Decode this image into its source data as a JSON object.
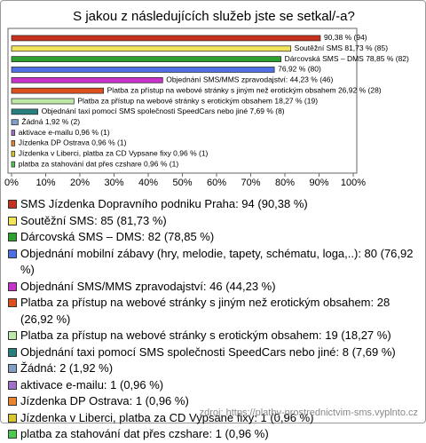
{
  "chart_data": {
    "type": "hbar",
    "title": "S jakou z následujících služeb jste se setkal/-a?",
    "categories": [
      "SMS Jízdenka Dopravního podniku Praha: 94 (90,38 %)",
      "Soutěžní SMS: 85 (81,73 %)",
      "Dárcovská SMS – DMS: 82 (78,85 %)",
      "Objednání mobilní zábavy (hry, melodie, tapety, schématu, loga,..): 80 (76,92 %)",
      "Objednání SMS/MMS zpravodajství: 46 (44,23 %)",
      "Platba za přístup na webové stránky s jiným než erotickým obsahem: 28 (26,92 %)",
      "Platba za přístup na webové stránky s erotickým obsahem: 19 (18,27 %)",
      "Objednání taxi pomocí SMS společnosti SpeedCars nebo jiné: 8 (7,69 %)",
      "Žádná: 2 (1,92 %)",
      "aktivace e-mailu: 1 (0,96 %)",
      "Jízdenka DP Ostrava: 1 (0,96 %)",
      "Jízdenka v Liberci, platba za CD Vypsane fixy: 1 (0,96 %)",
      "platba za stahování dat přes czshare: 1 (0,96 %)"
    ],
    "values": [
      90.38,
      81.73,
      78.85,
      76.92,
      44.23,
      26.92,
      18.27,
      7.69,
      1.92,
      0.96,
      0.96,
      0.96,
      0.96
    ],
    "value_labels": [
      "90,38 % (94)",
      "Soutěžní SMS 81,73 % (85)",
      "Dárcovská SMS – DMS 78,85 % (82)",
      "76,92 % (80)",
      "Objednání SMS/MMS zpravodajství: 44,23 % (46)",
      "Platba za přístup na webové stránky s jiným než erotickým obsahem 26,92 % (28)",
      "Platba za přístup na webové stránky s erotickým obsahem 18,27 % (19)",
      "Objednání taxi pomocí SMS společnosti SpeedCars nebo jiné 7,69 % (8)",
      "Žádná 1,92 % (2)",
      "aktivace e-mailu 0,96 % (1)",
      "Jízdenka DP Ostrava 0,96 % (1)",
      "Jízdenka v Liberci, platba za CD Vypsane fixy 0,96 % (1)",
      "platba za stahování dat přes czshare 0,96 % (1)"
    ],
    "colors": [
      "#c8301e",
      "#f2e45a",
      "#2ea02e",
      "#4f6fe6",
      "#c832c8",
      "#dc5020",
      "#bde8a8",
      "#287f80",
      "#7f9fc8",
      "#a070c8",
      "#e8852e",
      "#d8c630",
      "#4fc84f"
    ],
    "xlim": [
      0,
      100
    ],
    "xticks": [
      {
        "value": 0,
        "label": "0%"
      },
      {
        "value": 10,
        "label": "10%"
      },
      {
        "value": 20,
        "label": "20%"
      },
      {
        "value": 30,
        "label": "30%"
      },
      {
        "value": 40,
        "label": "40%"
      },
      {
        "value": 50,
        "label": "50%"
      },
      {
        "value": 60,
        "label": "60%"
      },
      {
        "value": 70,
        "label": "70%"
      },
      {
        "value": 80,
        "label": "80%"
      },
      {
        "value": 90,
        "label": "90%"
      },
      {
        "value": 100,
        "label": "100%"
      }
    ],
    "grid": false,
    "source": "zdroj: https://platby-prostrednictvim-sms.vyplnto.cz"
  }
}
